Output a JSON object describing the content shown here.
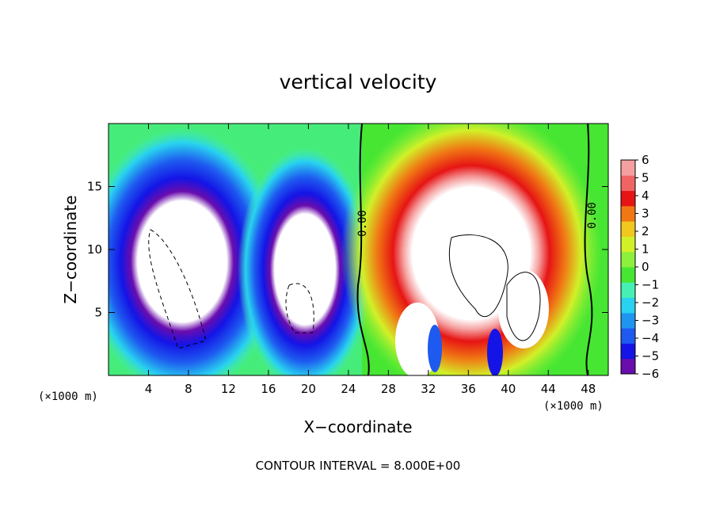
{
  "chart_data": {
    "type": "heatmap",
    "title": "vertical velocity",
    "xlabel": "X−coordinate",
    "ylabel": "Z−coordinate",
    "x_unit_note": "(×1000 m)",
    "y_unit_note": "(×1000 m)",
    "footer": "CONTOUR INTERVAL = 8.000E+00",
    "contour_labels": [
      "0.00",
      "0.00"
    ],
    "xlim": [
      0,
      50
    ],
    "ylim": [
      0,
      20
    ],
    "x_ticks": [
      "4",
      "8",
      "12",
      "16",
      "20",
      "24",
      "28",
      "32",
      "36",
      "40",
      "44",
      "48"
    ],
    "y_ticks": [
      "5",
      "10",
      "15"
    ],
    "colorbar": {
      "range": [
        -6,
        6
      ],
      "tick_labels": [
        "6",
        "5",
        "4",
        "3",
        "2",
        "1",
        "0",
        "−1",
        "−2",
        "−3",
        "−4",
        "−5",
        "−6"
      ],
      "colors": [
        "#6a0dad",
        "#1414e6",
        "#1e5af0",
        "#1e96f0",
        "#28d2f0",
        "#46f0b4",
        "#46e632",
        "#8cf03c",
        "#d2f028",
        "#f0c81e",
        "#f07814",
        "#e61414",
        "#f06464",
        "#f5a0a0"
      ]
    },
    "features": [
      {
        "name": "downdraft-left",
        "x": 9,
        "z": 9,
        "sign": "negative"
      },
      {
        "name": "downdraft-mid",
        "x": 20,
        "z": 8,
        "sign": "negative"
      },
      {
        "name": "updraft-main",
        "x": 37,
        "z": 9,
        "sign": "positive"
      }
    ]
  }
}
